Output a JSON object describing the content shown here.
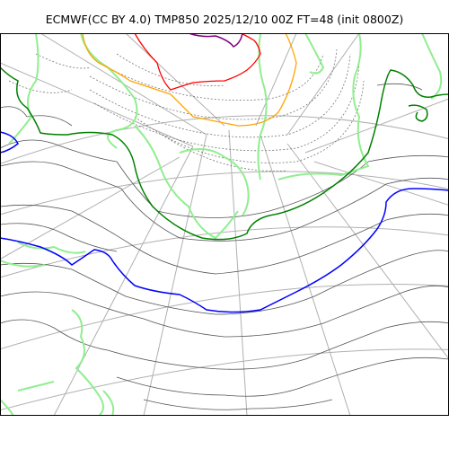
{
  "title": "ECMWF(CC BY 4.0) TMP850 2025/12/10 00Z FT=48 (init 0800Z)",
  "map": {
    "variable": "TMP850",
    "projection": "polar stereographic",
    "contour_colors": {
      "coastline": "#90ee90",
      "isotherm_thin": "#555555",
      "isotherm_dashed": "#777777",
      "graticule": "#b0b0b0",
      "contour_green": "#008000",
      "contour_blue": "#0000ff",
      "contour_orange": "#ffa500",
      "contour_red": "#ff0000",
      "contour_purple": "#800080"
    }
  }
}
